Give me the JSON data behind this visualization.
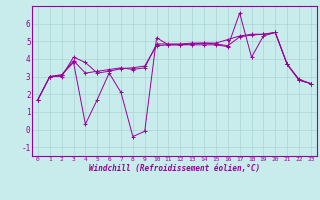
{
  "title": "",
  "xlabel": "Windchill (Refroidissement éolien,°C)",
  "ylabel": "",
  "bg_color": "#c8ecec",
  "grid_color": "#aad4d4",
  "line_color": "#990099",
  "xlim": [
    -0.5,
    23.5
  ],
  "ylim": [
    -1.5,
    7.0
  ],
  "yticks": [
    -1,
    0,
    1,
    2,
    3,
    4,
    5,
    6
  ],
  "xticks": [
    0,
    1,
    2,
    3,
    4,
    5,
    6,
    7,
    8,
    9,
    10,
    11,
    12,
    13,
    14,
    15,
    16,
    17,
    18,
    19,
    20,
    21,
    22,
    23
  ],
  "series1_x": [
    0,
    1,
    2,
    3,
    4,
    5,
    6,
    7,
    8,
    9,
    10,
    11,
    12,
    13,
    14,
    15,
    16,
    17,
    18,
    19,
    20,
    21,
    22,
    23
  ],
  "series1_y": [
    1.7,
    3.0,
    3.0,
    4.1,
    3.8,
    3.2,
    3.3,
    3.45,
    3.5,
    3.6,
    4.75,
    4.8,
    4.8,
    4.85,
    4.9,
    4.85,
    4.75,
    5.25,
    5.35,
    5.4,
    5.5,
    3.7,
    2.85,
    2.6
  ],
  "series2_x": [
    0,
    1,
    2,
    3,
    4,
    5,
    6,
    7,
    8,
    9,
    10,
    11,
    12,
    13,
    14,
    15,
    16,
    17,
    18,
    19,
    20,
    21,
    22,
    23
  ],
  "series2_y": [
    1.7,
    3.0,
    3.1,
    3.8,
    0.3,
    1.7,
    3.2,
    2.1,
    -0.4,
    -0.1,
    5.2,
    4.8,
    4.8,
    4.8,
    4.8,
    4.8,
    4.7,
    6.6,
    4.1,
    5.3,
    5.5,
    3.7,
    2.8,
    2.6
  ],
  "series3_x": [
    0,
    1,
    2,
    3,
    4,
    5,
    6,
    7,
    8,
    9,
    10,
    11,
    12,
    13,
    14,
    15,
    16,
    17,
    18,
    19,
    20,
    21,
    22,
    23
  ],
  "series3_y": [
    1.7,
    3.0,
    3.1,
    3.9,
    3.2,
    3.3,
    3.4,
    3.5,
    3.4,
    3.5,
    4.85,
    4.85,
    4.85,
    4.9,
    4.9,
    4.9,
    5.1,
    5.3,
    5.4,
    5.4,
    5.5,
    3.7,
    2.8,
    2.6
  ]
}
